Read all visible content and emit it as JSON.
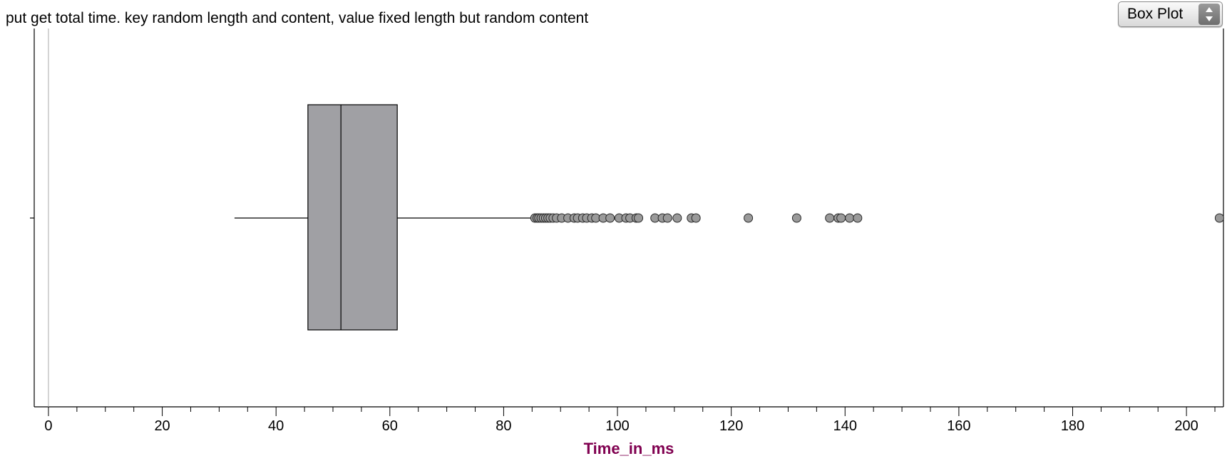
{
  "colors": {
    "box_fill": "#a0a0a4",
    "outlier_fill": "#9a9a9a",
    "stroke": "#000000",
    "axis_title": "#800050"
  },
  "plot_type_select": {
    "selected": "Box Plot",
    "arrow_icon": "updown-arrows-icon"
  },
  "chart_data": {
    "type": "box",
    "title": "put get total time. key random length and content, value fixed length but random content",
    "xlabel": "Time_in_ms",
    "ylabel": "",
    "orientation": "horizontal",
    "xlim": [
      -2.5,
      206.5
    ],
    "x_ticks": [
      0,
      20,
      40,
      60,
      80,
      100,
      120,
      140,
      160,
      180,
      200
    ],
    "minor_tick_step": 5,
    "grid": false,
    "box": {
      "whisker_low": 32.7,
      "q1": 45.6,
      "median": 51.4,
      "q3": 61.3,
      "whisker_high": 85.3
    },
    "outliers": [
      85.5,
      85.9,
      86.2,
      86.6,
      87.0,
      87.4,
      87.8,
      88.2,
      88.7,
      89.3,
      90.2,
      91.3,
      92.4,
      93.0,
      93.9,
      94.6,
      95.5,
      96.2,
      97.5,
      98.7,
      100.3,
      101.5,
      102.2,
      103.3,
      103.7,
      106.6,
      107.9,
      108.8,
      110.5,
      113.0,
      113.8,
      123.0,
      131.5,
      137.3,
      138.8,
      139.3,
      140.8,
      142.2,
      205.8
    ]
  }
}
